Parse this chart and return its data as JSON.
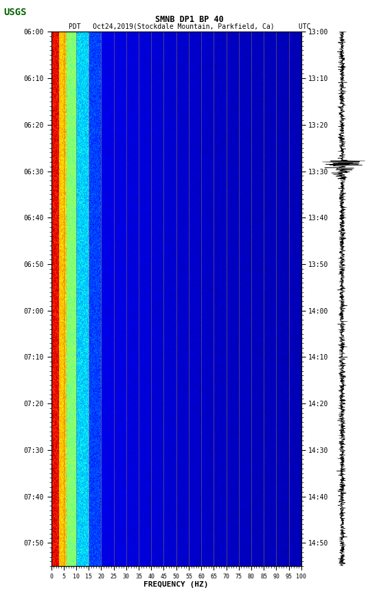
{
  "title_line1": "SMNB DP1 BP 40",
  "title_line2": "PDT   Oct24,2019(Stockdale Mountain, Parkfield, Ca)      UTC",
  "xlabel": "FREQUENCY (HZ)",
  "freq_min": 0,
  "freq_max": 100,
  "time_ticks_pdt": [
    "06:00",
    "06:10",
    "06:20",
    "06:30",
    "06:40",
    "06:50",
    "07:00",
    "07:10",
    "07:20",
    "07:30",
    "07:40",
    "07:50"
  ],
  "time_ticks_utc": [
    "13:00",
    "13:10",
    "13:20",
    "13:30",
    "13:40",
    "13:50",
    "14:00",
    "14:10",
    "14:20",
    "14:30",
    "14:40",
    "14:50"
  ],
  "freq_ticks": [
    0,
    5,
    10,
    15,
    20,
    25,
    30,
    35,
    40,
    45,
    50,
    55,
    60,
    65,
    70,
    75,
    80,
    85,
    90,
    95,
    100
  ],
  "vert_gridlines_freq": [
    5,
    10,
    15,
    20,
    25,
    30,
    35,
    40,
    45,
    50,
    55,
    60,
    65,
    70,
    75,
    80,
    85,
    90,
    95,
    100
  ],
  "fig_bg": "#ffffff",
  "grid_color": "#8B7355",
  "colormap": "jet",
  "logo_color": "#006400",
  "total_minutes": 115
}
